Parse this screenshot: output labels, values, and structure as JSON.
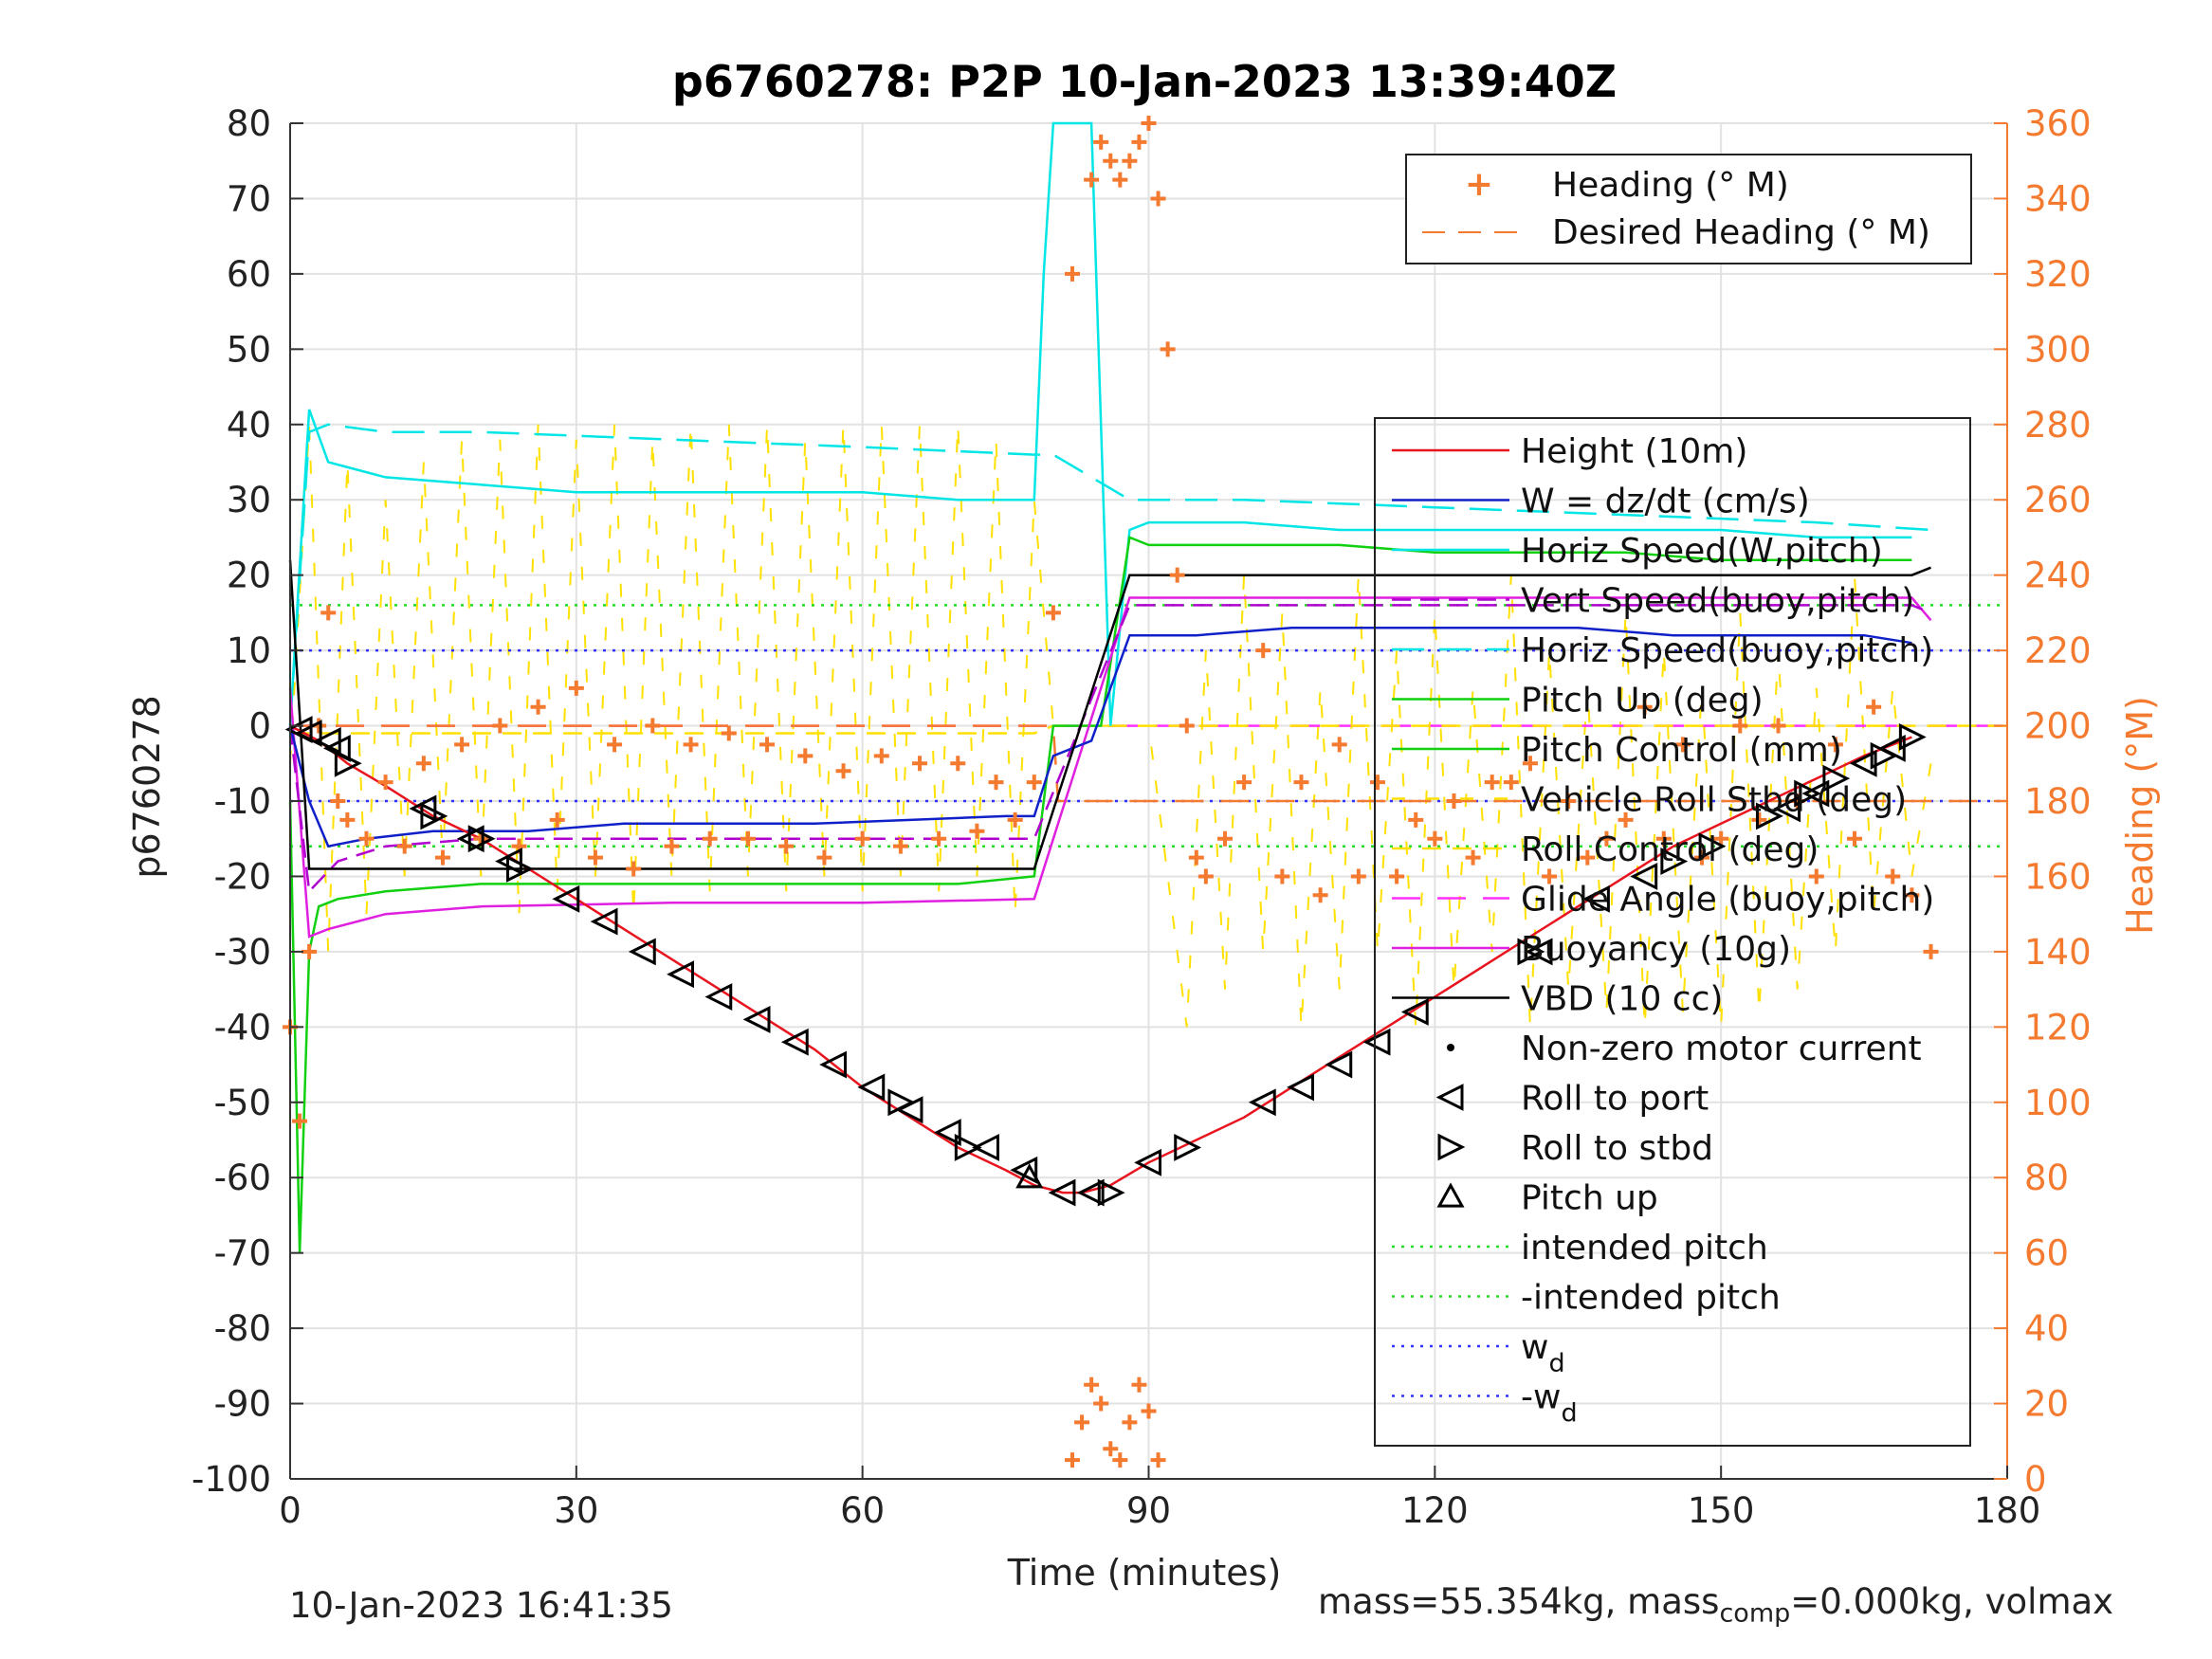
{
  "chart_data": {
    "type": "line",
    "title": "p6760278: P2P 10-Jan-2023 13:39:40Z",
    "xlabel": "Time (minutes)",
    "ylabel": "p6760278",
    "y2label": "Heading (°M)",
    "xlim": [
      0,
      180
    ],
    "ylim": [
      -100,
      80
    ],
    "y2lim": [
      0,
      360
    ],
    "xticks": [
      0,
      30,
      60,
      90,
      120,
      150,
      180
    ],
    "yticks": [
      -100,
      -90,
      -80,
      -70,
      -60,
      -50,
      -40,
      -30,
      -20,
      -10,
      0,
      10,
      20,
      30,
      40,
      50,
      60,
      70,
      80
    ],
    "y2ticks": [
      0,
      20,
      40,
      60,
      80,
      100,
      120,
      140,
      160,
      180,
      200,
      220,
      240,
      260,
      280,
      300,
      320,
      340,
      360
    ],
    "grid": true,
    "legend_heading": {
      "placement": "top-right",
      "entries": [
        "Heading (° M)",
        "Desired Heading (° M)"
      ]
    },
    "legend_main": {
      "placement": "right",
      "entries": [
        "Height (10m)",
        "W = dz/dt (cm/s)",
        "Horiz Speed(W,pitch)",
        "Vert Speed(buoy,pitch)",
        "Horiz Speed(buoy,pitch)",
        "Pitch Up (deg)",
        "Pitch Control (mm)",
        "Vehicle Roll Stbd (deg)",
        "Roll Control (deg)",
        "Glide Angle (buoy,pitch)",
        "Buoyancy (10g)",
        "VBD (10 cc)",
        "Non-zero motor current",
        "Roll to port",
        "Roll to stbd",
        "Pitch up",
        "intended pitch",
        "-intended pitch",
        "w",
        "-w"
      ],
      "subscript_d": "d"
    },
    "colors": {
      "height": "#e8141e",
      "w": "#1020c8",
      "horiz_w": "#00e5e5",
      "vert_buoy": "#b000d0",
      "horiz_buoy": "#00e5e5",
      "pitch_up": "#10d010",
      "pitch_control": "#10d010",
      "roll": "#ffe000",
      "roll_control": "#ffe000",
      "glide": "#ff30ff",
      "buoyancy": "#e020e0",
      "vbd": "#000000",
      "heading": "#f47a30",
      "markers": "#000000",
      "intended": "#22dd22",
      "wd": "#3030ff"
    },
    "series": [
      {
        "name": "Height (10m)",
        "x": [
          0,
          3,
          6,
          10,
          15,
          20,
          25,
          30,
          35,
          40,
          45,
          50,
          55,
          60,
          65,
          70,
          75,
          78,
          81,
          83,
          86,
          90,
          95,
          100,
          105,
          110,
          115,
          120,
          125,
          130,
          135,
          140,
          145,
          150,
          155,
          160,
          165,
          170
        ],
        "y": [
          0,
          -2,
          -5,
          -8,
          -12,
          -15,
          -19,
          -23,
          -27,
          -31,
          -35,
          -39,
          -43,
          -48,
          -52,
          -56,
          -59,
          -61,
          -62,
          -62,
          -61,
          -58,
          -55,
          -52,
          -48,
          -44,
          -40,
          -36,
          -32,
          -28,
          -24,
          -20,
          -16,
          -13,
          -10,
          -7,
          -4,
          -1.5
        ]
      },
      {
        "name": "VBD (10 cc)",
        "x": [
          0,
          2,
          4,
          78,
          88,
          170,
          172
        ],
        "y": [
          22,
          -19,
          -19,
          -19,
          20,
          20,
          21
        ]
      },
      {
        "name": "Buoyancy (10g)",
        "x": [
          0,
          2,
          4,
          10,
          20,
          40,
          60,
          78,
          88,
          170,
          172
        ],
        "y": [
          5,
          -28,
          -27,
          -25,
          -24,
          -23.5,
          -23.5,
          -23,
          17,
          17,
          14
        ]
      },
      {
        "name": "Vert Speed(buoy,pitch)",
        "x": [
          0,
          2,
          5,
          10,
          20,
          40,
          60,
          78,
          88,
          170,
          172
        ],
        "y": [
          0,
          -22,
          -18,
          -16,
          -15,
          -15,
          -15,
          -15,
          16,
          16,
          15
        ]
      },
      {
        "name": "W = dz/dt (cm/s)",
        "x": [
          0,
          2,
          4,
          8,
          15,
          25,
          35,
          45,
          55,
          65,
          75,
          78,
          80,
          84,
          88,
          95,
          105,
          115,
          125,
          135,
          145,
          155,
          165,
          170
        ],
        "y": [
          0,
          -10,
          -16,
          -15,
          -14,
          -14,
          -13,
          -13,
          -13,
          -12.5,
          -12,
          -12,
          -4,
          -2,
          12,
          12,
          13,
          13,
          13,
          13,
          12,
          12,
          12,
          11
        ]
      },
      {
        "name": "Horiz Speed(W,pitch)",
        "x": [
          0,
          2,
          4,
          10,
          20,
          30,
          40,
          50,
          60,
          70,
          78,
          79,
          80,
          82,
          84,
          86,
          88,
          90,
          100,
          110,
          120,
          130,
          140,
          150,
          160,
          170
        ],
        "y": [
          0,
          42,
          35,
          33,
          32,
          31,
          31,
          31,
          31,
          30,
          30,
          60,
          80,
          80,
          80,
          0,
          26,
          27,
          27,
          26,
          26,
          26,
          26,
          26,
          25,
          25
        ]
      },
      {
        "name": "Horiz Speed(buoy,pitch)",
        "x": [
          0,
          2,
          4,
          10,
          20,
          40,
          60,
          78,
          80,
          88,
          100,
          120,
          140,
          160,
          172
        ],
        "y": [
          0,
          39,
          40,
          39,
          39,
          38,
          37,
          36,
          36,
          30,
          30,
          29,
          28,
          27,
          26
        ]
      },
      {
        "name": "Pitch Up (deg)",
        "x": [
          0,
          1,
          2,
          3,
          5,
          10,
          20,
          30,
          40,
          50,
          60,
          70,
          78,
          80,
          85,
          88,
          90,
          100,
          110,
          120,
          130,
          140,
          150,
          160,
          170
        ],
        "y": [
          -10,
          -70,
          -30,
          -24,
          -23,
          -22,
          -21,
          -21,
          -21,
          -21,
          -21,
          -21,
          -20,
          0,
          0,
          25,
          24,
          24,
          24,
          23,
          23,
          23,
          22,
          22,
          22
        ]
      },
      {
        "name": "Glide Angle (buoy,pitch)",
        "x": [
          0,
          180
        ],
        "y": [
          0,
          0
        ]
      },
      {
        "name": "Roll Control (deg)",
        "x": [
          0,
          78,
          80,
          180
        ],
        "y": [
          -1,
          -1,
          0,
          0
        ]
      },
      {
        "name": "intended pitch",
        "x": [
          0,
          180
        ],
        "y": [
          16,
          16
        ]
      },
      {
        "name": "-intended pitch",
        "x": [
          0,
          180
        ],
        "y": [
          -16,
          -16
        ]
      },
      {
        "name": "w",
        "x": [
          0,
          180
        ],
        "y": [
          10,
          10
        ]
      },
      {
        "name": "-w",
        "x": [
          0,
          180
        ],
        "y": [
          -10,
          -10
        ]
      },
      {
        "name": "Heading (° M)",
        "axis": "right",
        "x": [
          0,
          1,
          2,
          3,
          4,
          5,
          6,
          8,
          10,
          12,
          14,
          16,
          18,
          20,
          22,
          24,
          26,
          28,
          30,
          32,
          34,
          36,
          38,
          40,
          42,
          44,
          46,
          48,
          50,
          52,
          54,
          56,
          58,
          60,
          62,
          64,
          66,
          68,
          70,
          72,
          74,
          76,
          78,
          80,
          82,
          84,
          85,
          86,
          87,
          88,
          89,
          90,
          91,
          92,
          93,
          94,
          95,
          96,
          98,
          100,
          102,
          104,
          106,
          108,
          110,
          112,
          114,
          116,
          118,
          120,
          122,
          124,
          126,
          128,
          130,
          132,
          134,
          136,
          138,
          140,
          142,
          144,
          146,
          148,
          150,
          152,
          154,
          156,
          158,
          160,
          162,
          164,
          166,
          168,
          170,
          172
        ],
        "y": [
          120,
          95,
          140,
          200,
          230,
          180,
          175,
          170,
          185,
          168,
          190,
          165,
          195,
          170,
          200,
          168,
          205,
          175,
          210,
          165,
          195,
          162,
          200,
          168,
          195,
          170,
          198,
          170,
          195,
          168,
          192,
          165,
          188,
          170,
          192,
          168,
          190,
          170,
          190,
          172,
          185,
          175,
          185,
          230,
          320,
          345,
          355,
          350,
          345,
          350,
          355,
          360,
          340,
          300,
          240,
          200,
          165,
          160,
          170,
          185,
          220,
          160,
          185,
          155,
          195,
          160,
          185,
          160,
          175,
          170,
          180,
          165,
          185,
          185,
          190,
          160,
          180,
          165,
          170,
          175,
          205,
          170,
          195,
          165,
          170,
          200,
          175,
          200,
          180,
          160,
          195,
          170,
          205,
          160,
          155,
          140
        ]
      },
      {
        "name": "Heading (° M) low cluster",
        "axis": "right",
        "x": [
          82,
          83,
          84,
          85,
          86,
          87,
          88,
          89,
          90,
          91
        ],
        "y": [
          5,
          15,
          25,
          20,
          8,
          5,
          15,
          25,
          18,
          5
        ]
      },
      {
        "name": "Desired Heading (° M)",
        "axis": "right",
        "x": [
          0,
          80,
          80.5,
          180
        ],
        "y": [
          200,
          200,
          180,
          180
        ]
      },
      {
        "name": "Roll to port",
        "marker": "left-triangle",
        "x": [
          1,
          2,
          4,
          5,
          14,
          19,
          23,
          29,
          33,
          37,
          41,
          45,
          49,
          53,
          57,
          61,
          65,
          69,
          73,
          77,
          81,
          84,
          90,
          102,
          106,
          110,
          114,
          118,
          131,
          137,
          142,
          157,
          160,
          165,
          168
        ],
        "y": [
          -0.5,
          -1,
          -2,
          -3,
          -11,
          -15,
          -18,
          -23,
          -26,
          -30,
          -33,
          -36,
          -39,
          -42,
          -45,
          -48,
          -51,
          -54,
          -56,
          -59,
          -62,
          -62,
          -58,
          -50,
          -48,
          -45,
          -42,
          -38,
          -30,
          -23,
          -20,
          -11,
          -9,
          -5,
          -3
        ]
      },
      {
        "name": "Roll to stbd",
        "marker": "right-triangle",
        "x": [
          6,
          15,
          20,
          24,
          64,
          71,
          86,
          94,
          130,
          145,
          149,
          155,
          159,
          162,
          167,
          170
        ],
        "y": [
          -5,
          -12,
          -15,
          -19,
          -50,
          -56,
          -62,
          -56,
          -30,
          -18,
          -16,
          -12,
          -9,
          -7,
          -4,
          -1.5
        ]
      },
      {
        "name": "Pitch up",
        "marker": "up-triangle",
        "x": [
          77.5
        ],
        "y": [
          -60
        ]
      },
      {
        "name": "Vehicle Roll Stbd (deg)",
        "x": [
          0,
          2,
          4,
          6,
          8,
          10,
          12,
          14,
          16,
          18,
          20,
          22,
          24,
          26,
          28,
          30,
          32,
          34,
          36,
          38,
          40,
          42,
          44,
          46,
          48,
          50,
          52,
          54,
          56,
          58,
          60,
          62,
          64,
          66,
          68,
          70,
          72,
          74,
          76,
          78,
          80,
          82,
          84,
          86,
          88,
          90,
          92,
          94,
          96,
          98,
          100,
          102,
          104,
          106,
          108,
          110,
          112,
          114,
          116,
          118,
          120,
          122,
          124,
          126,
          128,
          130,
          132,
          134,
          136,
          138,
          140,
          142,
          144,
          146,
          148,
          150,
          152,
          154,
          156,
          158,
          160,
          162,
          164,
          166,
          168,
          170,
          172
        ],
        "y": [
          -5,
          40,
          -30,
          35,
          -25,
          30,
          -20,
          35,
          -18,
          38,
          -20,
          38,
          -25,
          40,
          -22,
          38,
          -20,
          40,
          -25,
          38,
          -20,
          40,
          -22,
          40,
          -20,
          40,
          -22,
          38,
          -20,
          40,
          -22,
          40,
          -20,
          40,
          -22,
          40,
          -20,
          38,
          -25,
          30,
          0,
          0,
          0,
          0,
          0,
          0,
          -20,
          -40,
          10,
          -35,
          20,
          -30,
          15,
          -40,
          5,
          -35,
          20,
          -30,
          10,
          -40,
          15,
          -35,
          5,
          -30,
          20,
          -40,
          10,
          -35,
          5,
          -38,
          15,
          -40,
          10,
          -38,
          5,
          -40,
          15,
          -38,
          10,
          -35,
          5,
          -30,
          20,
          -25,
          5,
          -20,
          -5
        ]
      }
    ],
    "footer_left": "10-Jan-2023 16:41:35",
    "footer_right_prefix": "mass=55.354kg, mass",
    "footer_right_sub": "comp",
    "footer_right_suffix": "=0.000kg, volmax"
  }
}
